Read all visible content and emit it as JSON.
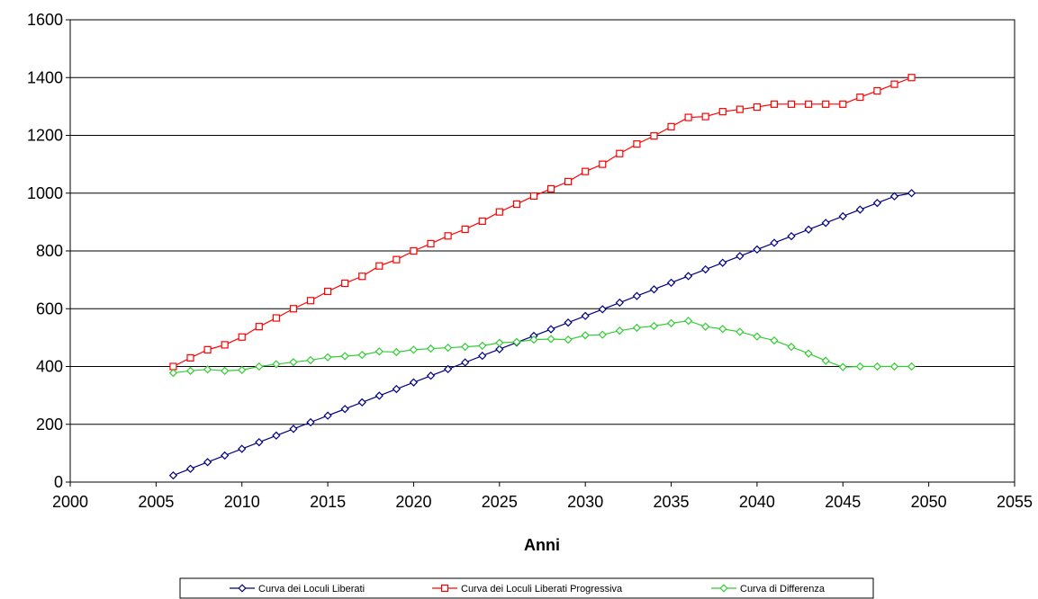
{
  "chart_data": {
    "type": "line",
    "title": "",
    "xlabel": "Anni",
    "ylabel": "",
    "xlim": [
      2000,
      2055
    ],
    "ylim": [
      0,
      1600
    ],
    "x_ticks": [
      2000,
      2005,
      2010,
      2015,
      2020,
      2025,
      2030,
      2035,
      2040,
      2045,
      2050,
      2055
    ],
    "y_ticks": [
      0,
      200,
      400,
      600,
      800,
      1000,
      1200,
      1400,
      1600
    ],
    "grid": "horizontal",
    "legend_position": "bottom",
    "x": [
      2006,
      2007,
      2008,
      2009,
      2010,
      2011,
      2012,
      2013,
      2014,
      2015,
      2016,
      2017,
      2018,
      2019,
      2020,
      2021,
      2022,
      2023,
      2024,
      2025,
      2026,
      2027,
      2028,
      2029,
      2030,
      2031,
      2032,
      2033,
      2034,
      2035,
      2036,
      2037,
      2038,
      2039,
      2040,
      2041,
      2042,
      2043,
      2044,
      2045,
      2046,
      2047,
      2048,
      2049
    ],
    "series": [
      {
        "name": "Curva dei Loculi Liberati",
        "color": "#000080",
        "marker": "diamond",
        "values": [
          23,
          46,
          69,
          92,
          115,
          138,
          161,
          184,
          207,
          230,
          253,
          276,
          299,
          322,
          345,
          368,
          391,
          414,
          437,
          460,
          483,
          506,
          529,
          552,
          575,
          598,
          621,
          644,
          667,
          690,
          713,
          736,
          759,
          782,
          805,
          828,
          851,
          874,
          897,
          920,
          943,
          966,
          989,
          1000
        ]
      },
      {
        "name": "Curva dei Loculi Liberati Progressiva",
        "color": "#ff0000",
        "marker": "square",
        "values": [
          400,
          430,
          458,
          475,
          502,
          538,
          568,
          600,
          628,
          660,
          688,
          712,
          748,
          770,
          800,
          825,
          852,
          875,
          903,
          935,
          962,
          990,
          1015,
          1040,
          1075,
          1100,
          1137,
          1170,
          1198,
          1230,
          1262,
          1265,
          1282,
          1290,
          1298,
          1308,
          1308,
          1308,
          1308,
          1308,
          1332,
          1354,
          1377,
          1400
        ]
      },
      {
        "name": "Curva di Differenza",
        "color": "#33cc33",
        "marker": "diamond",
        "values": [
          378,
          385,
          390,
          385,
          388,
          400,
          408,
          415,
          422,
          432,
          436,
          440,
          452,
          450,
          458,
          462,
          465,
          468,
          472,
          482,
          485,
          493,
          495,
          493,
          508,
          510,
          524,
          534,
          540,
          550,
          558,
          538,
          530,
          520,
          504,
          490,
          468,
          445,
          420,
          398,
          400,
          400,
          400,
          400
        ]
      }
    ]
  }
}
